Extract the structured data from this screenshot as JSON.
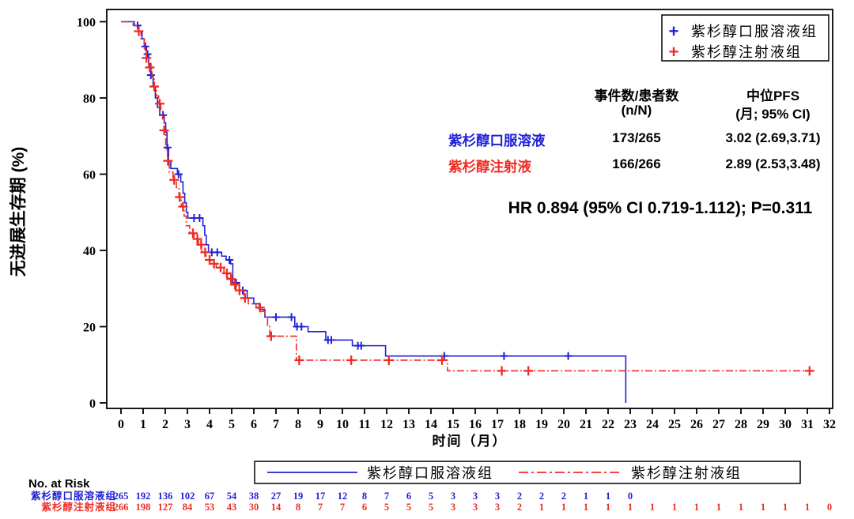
{
  "colors": {
    "oral_blue": "#2121d6",
    "injection_red": "#ef2c23",
    "axis_black": "#000000"
  },
  "legend_top": {
    "items": [
      {
        "marker": "+",
        "label": "紫杉醇口服溶液组",
        "color": "#2121d6"
      },
      {
        "marker": "+",
        "label": "紫杉醇注射液组",
        "color": "#ef2c23"
      }
    ]
  },
  "stats_table": {
    "header": {
      "events_line1": "事件数/患者数",
      "events_line2": "(n/N)",
      "median_line1": "中位PFS",
      "median_line2": "(月; 95% CI)"
    },
    "rows": [
      {
        "label": "紫杉醇口服溶液",
        "events": "173/265",
        "median": "3.02 (2.69,3.71)",
        "color": "#2121d6"
      },
      {
        "label": "紫杉醇注射液",
        "events": "166/266",
        "median": "2.89 (2.53,3.48)",
        "color": "#ef2c23"
      }
    ]
  },
  "hr_text": "HR 0.894 (95% CI 0.719-1.112); P=0.311",
  "legend_bottom": {
    "items": [
      {
        "label": "紫杉醇口服溶液组",
        "line_style": "solid",
        "color": "#2121d6"
      },
      {
        "label": "紫杉醇注射液组",
        "line_style": "dash-dot",
        "color": "#ef2c23"
      }
    ]
  },
  "chart_data": {
    "type": "line",
    "subtype": "kaplan-meier-step",
    "title": "",
    "xlabel": "时间（月）",
    "ylabel": "无进展生存期 (%)",
    "xlim": [
      0,
      32
    ],
    "ylim": [
      0,
      100
    ],
    "grid": false,
    "x_ticks": [
      0,
      1,
      2,
      3,
      4,
      5,
      6,
      7,
      8,
      9,
      10,
      11,
      12,
      13,
      14,
      15,
      16,
      17,
      18,
      19,
      20,
      21,
      22,
      23,
      24,
      25,
      26,
      27,
      28,
      29,
      30,
      31,
      32
    ],
    "y_ticks": [
      0,
      20,
      40,
      60,
      80,
      100
    ],
    "series": [
      {
        "id": "oral",
        "name": "紫杉醇口服溶液组",
        "color": "#2121d6",
        "line_style": "solid",
        "median_pfs_months": 3.02,
        "steps": [
          [
            0,
            100
          ],
          [
            0.6,
            99
          ],
          [
            0.8,
            97.5
          ],
          [
            0.95,
            95.5
          ],
          [
            1.05,
            93.5
          ],
          [
            1.15,
            91.5
          ],
          [
            1.25,
            89
          ],
          [
            1.35,
            86
          ],
          [
            1.45,
            83
          ],
          [
            1.55,
            80
          ],
          [
            1.65,
            77.5
          ],
          [
            1.75,
            75.5
          ],
          [
            1.95,
            73.5
          ],
          [
            2.02,
            71
          ],
          [
            2.08,
            67
          ],
          [
            2.15,
            63.5
          ],
          [
            2.25,
            61.5
          ],
          [
            2.55,
            60
          ],
          [
            2.7,
            58
          ],
          [
            2.8,
            55
          ],
          [
            2.88,
            52.5
          ],
          [
            2.95,
            50
          ],
          [
            3.02,
            48.5
          ],
          [
            3.7,
            46.5
          ],
          [
            3.78,
            44
          ],
          [
            3.85,
            41.5
          ],
          [
            3.95,
            39.5
          ],
          [
            4.55,
            38.5
          ],
          [
            4.75,
            37.5
          ],
          [
            4.95,
            36.5
          ],
          [
            5.05,
            31.5
          ],
          [
            5.35,
            29.5
          ],
          [
            5.7,
            27.5
          ],
          [
            6.0,
            26
          ],
          [
            6.25,
            24.5
          ],
          [
            6.5,
            22.5
          ],
          [
            7.85,
            20
          ],
          [
            8.45,
            18.7
          ],
          [
            9.25,
            16.5
          ],
          [
            10.45,
            15
          ],
          [
            11.95,
            12.3
          ],
          [
            22.8,
            0
          ]
        ],
        "censor_times": [
          0.75,
          1.1,
          1.2,
          1.35,
          1.5,
          1.9,
          2.1,
          2.6,
          3.3,
          3.55,
          4.1,
          4.35,
          4.9,
          5.2,
          5.5,
          7.0,
          7.7,
          7.95,
          8.15,
          9.35,
          9.5,
          10.7,
          10.85,
          14.6,
          17.3,
          20.2
        ],
        "censor_size": 5,
        "censor_width": 2
      },
      {
        "id": "injection",
        "name": "紫杉醇注射液组",
        "color": "#ef2c23",
        "line_style": "dash-dot",
        "median_pfs_months": 2.89,
        "steps": [
          [
            0,
            100
          ],
          [
            0.55,
            99
          ],
          [
            0.75,
            97.5
          ],
          [
            0.9,
            95.5
          ],
          [
            1.05,
            93
          ],
          [
            1.15,
            90.5
          ],
          [
            1.25,
            88
          ],
          [
            1.4,
            85.5
          ],
          [
            1.5,
            83
          ],
          [
            1.6,
            80.5
          ],
          [
            1.7,
            78.5
          ],
          [
            1.8,
            76.5
          ],
          [
            1.88,
            74.5
          ],
          [
            1.95,
            71.5
          ],
          [
            2.02,
            66.5
          ],
          [
            2.1,
            63.5
          ],
          [
            2.18,
            60.5
          ],
          [
            2.35,
            58.5
          ],
          [
            2.5,
            56.5
          ],
          [
            2.62,
            54
          ],
          [
            2.72,
            51.5
          ],
          [
            2.85,
            49
          ],
          [
            2.95,
            46.5
          ],
          [
            3.1,
            44.5
          ],
          [
            3.3,
            43
          ],
          [
            3.5,
            41.5
          ],
          [
            3.65,
            39.5
          ],
          [
            3.85,
            37.5
          ],
          [
            4.05,
            36.5
          ],
          [
            4.3,
            35.5
          ],
          [
            4.65,
            34
          ],
          [
            4.85,
            32.5
          ],
          [
            5.0,
            31
          ],
          [
            5.2,
            29.5
          ],
          [
            5.55,
            27.5
          ],
          [
            5.75,
            26
          ],
          [
            6.1,
            25
          ],
          [
            6.3,
            24
          ],
          [
            6.5,
            22.5
          ],
          [
            6.62,
            20.3
          ],
          [
            6.72,
            17.5
          ],
          [
            7.92,
            11.2
          ],
          [
            14.75,
            8.4
          ]
        ],
        "end_time": 31.2,
        "censor_times": [
          0.8,
          1.15,
          1.3,
          1.5,
          1.75,
          1.95,
          2.12,
          2.4,
          2.65,
          2.8,
          3.25,
          3.45,
          3.62,
          3.8,
          4.0,
          4.2,
          4.5,
          4.78,
          4.97,
          5.15,
          5.35,
          5.6,
          6.28,
          6.78,
          8.05,
          10.4,
          12.1,
          14.5,
          17.2,
          18.4,
          31.1
        ],
        "censor_size": 6,
        "censor_width": 2.3
      }
    ],
    "annotation": "HR 0.894 (95% CI 0.719-1.112); P=0.311",
    "at_risk": {
      "label": "No. at Risk",
      "rows": [
        {
          "name": "紫杉醇口服溶液组",
          "color": "#2121d6",
          "values": [
            265,
            192,
            136,
            102,
            67,
            54,
            38,
            27,
            19,
            17,
            12,
            8,
            7,
            6,
            5,
            3,
            3,
            3,
            2,
            2,
            2,
            1,
            1,
            0
          ]
        },
        {
          "name": "紫杉醇注射液组",
          "color": "#ef2c23",
          "values": [
            266,
            198,
            127,
            84,
            53,
            43,
            30,
            14,
            8,
            7,
            7,
            6,
            5,
            5,
            5,
            3,
            3,
            3,
            2,
            1,
            1,
            1,
            1,
            1,
            1,
            1,
            1,
            1,
            1,
            1,
            1,
            1,
            0
          ]
        }
      ]
    }
  }
}
